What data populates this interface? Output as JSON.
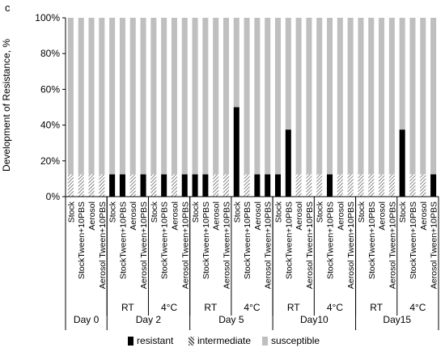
{
  "panel_label": "c",
  "legend": {
    "resistant": "resistant",
    "intermediate": "intermediate",
    "susceptible": "susceptible"
  },
  "colors": {
    "resistant": "#000000",
    "intermediate_hatch": "#555555",
    "susceptible": "#bfbfbf",
    "axis": "#000000"
  },
  "chart_data": {
    "type": "bar",
    "stacked": true,
    "percent": true,
    "title": "",
    "xlabel": "",
    "ylabel": "Development of Resistance, %",
    "ylim": [
      0,
      100
    ],
    "yticks": [
      "0%",
      "20%",
      "40%",
      "60%",
      "80%",
      "100%"
    ],
    "categories": [
      "Stock",
      "StockTween+10PBS",
      "Aerosol",
      "Aerosol Tween+10PBS",
      "Stock",
      "StockTween+10PBS",
      "Aerosol",
      "Aerosol Tween+10PBS",
      "Stock",
      "StockTween+10PBS",
      "Aerosol",
      "Aerosol Tween+10PBS",
      "Stock",
      "StockTween+10PBS",
      "Aerosol",
      "Aerosol Tween+10PBS",
      "Stock",
      "StockTween+10PBS",
      "Aerosol",
      "Aerosol Tween+10PBS",
      "Stock",
      "StockTween+10PBS",
      "Aerosol",
      "Aerosol Tween+10PBS",
      "Stock",
      "StockTween+10PBS",
      "Aerosol",
      "Aerosol Tween+10PBS",
      "Stock",
      "StockTween+10PBS",
      "Aerosol",
      "Aerosol Tween+10PBS",
      "Stock",
      "StockTween+10PBS",
      "Aerosol",
      "Aerosol Tween+10PBS"
    ],
    "conditions": [
      {
        "label": "",
        "count": 4
      },
      {
        "label": "RT",
        "count": 4
      },
      {
        "label": "4°C",
        "count": 4
      },
      {
        "label": "RT",
        "count": 4
      },
      {
        "label": "4°C",
        "count": 4
      },
      {
        "label": "RT",
        "count": 4
      },
      {
        "label": "4°C",
        "count": 4
      },
      {
        "label": "RT",
        "count": 4
      },
      {
        "label": "4°C",
        "count": 4
      }
    ],
    "days": [
      {
        "label": "Day 0",
        "count": 4
      },
      {
        "label": "Day 2",
        "count": 8
      },
      {
        "label": "Day 5",
        "count": 8
      },
      {
        "label": "Day10",
        "count": 8
      },
      {
        "label": "Day15",
        "count": 8
      }
    ],
    "series": [
      {
        "name": "resistant",
        "values": [
          0,
          0,
          0,
          0,
          12.5,
          12.5,
          0,
          12.5,
          0,
          12.5,
          0,
          12.5,
          12.5,
          12.5,
          0,
          0,
          50,
          0,
          12.5,
          12.5,
          12.5,
          37.5,
          0,
          0,
          0,
          12.5,
          0,
          0,
          0,
          0,
          0,
          0,
          37.5,
          0,
          0,
          12.5
        ]
      },
      {
        "name": "intermediate",
        "values": [
          12.5,
          12.5,
          12.5,
          12.5,
          0,
          0,
          12.5,
          0,
          12.5,
          0,
          12.5,
          0,
          0,
          0,
          12.5,
          12.5,
          0,
          12.5,
          0,
          0,
          0,
          0,
          12.5,
          12.5,
          12.5,
          0,
          12.5,
          12.5,
          12.5,
          12.5,
          12.5,
          12.5,
          0,
          12.5,
          12.5,
          0
        ]
      },
      {
        "name": "susceptible",
        "values": [
          87.5,
          87.5,
          87.5,
          87.5,
          87.5,
          87.5,
          87.5,
          87.5,
          87.5,
          87.5,
          87.5,
          87.5,
          87.5,
          87.5,
          87.5,
          87.5,
          50,
          87.5,
          87.5,
          87.5,
          87.5,
          62.5,
          87.5,
          87.5,
          87.5,
          87.5,
          87.5,
          87.5,
          87.5,
          87.5,
          87.5,
          87.5,
          62.5,
          87.5,
          87.5,
          87.5
        ]
      }
    ],
    "grid": false,
    "legend_position": "bottom"
  }
}
